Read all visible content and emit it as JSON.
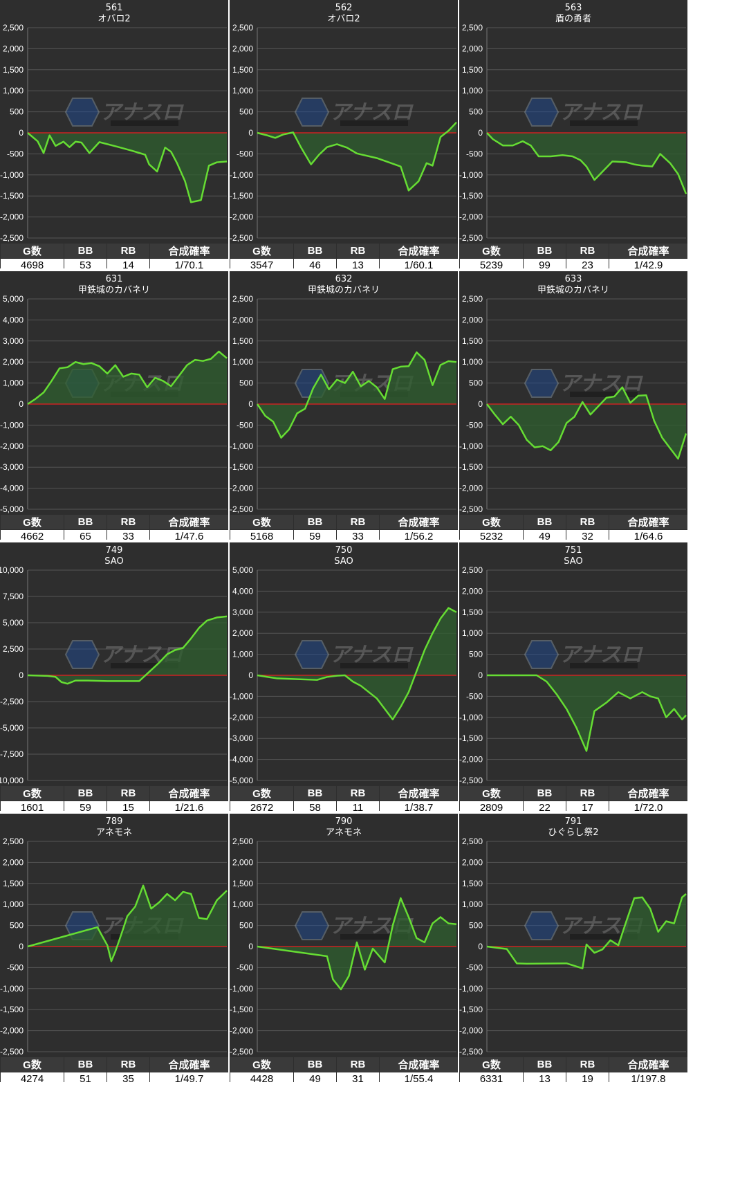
{
  "stat_headers": [
    "G数",
    "BB",
    "RB",
    "合成確率"
  ],
  "colors": {
    "panel_bg": "#2e2e2e",
    "line": "#66dd33",
    "fill": "#2f5f2f",
    "zero_line": "#cc2222",
    "grid": "#555555"
  },
  "watermark": "アナスロ — Analysis Slot",
  "chart_data": [
    {
      "type": "area",
      "machine": "561",
      "title": "オバロ2",
      "ylim": [
        -2500,
        2500
      ],
      "yticks": [
        "2,500",
        "2,000",
        "1,500",
        "1,000",
        "500",
        "0",
        "-500",
        "-1,000",
        "-1,500",
        "-2,000",
        "-2,500"
      ],
      "x": [
        0,
        0.05,
        0.08,
        0.11,
        0.14,
        0.18,
        0.21,
        0.24,
        0.27,
        0.31,
        0.36,
        0.45,
        0.52,
        0.59,
        0.61,
        0.65,
        0.69,
        0.72,
        0.75,
        0.79,
        0.82,
        0.87,
        0.91,
        0.95,
        1.0
      ],
      "values": [
        0,
        -200,
        -480,
        -60,
        -310,
        -210,
        -340,
        -210,
        -230,
        -480,
        -220,
        -330,
        -420,
        -520,
        -750,
        -920,
        -350,
        -450,
        -720,
        -1150,
        -1650,
        -1600,
        -780,
        -700,
        -680
      ],
      "stats": {
        "g": "4698",
        "bb": "53",
        "rb": "14",
        "prob": "1/70.1"
      }
    },
    {
      "type": "area",
      "machine": "562",
      "title": "オバロ2",
      "ylim": [
        -2500,
        2500
      ],
      "yticks": [
        "2,500",
        "2,000",
        "1,500",
        "1,000",
        "500",
        "0",
        "-500",
        "-1,000",
        "-1,500",
        "-2,000",
        "-2,500"
      ],
      "x": [
        0,
        0.05,
        0.09,
        0.13,
        0.18,
        0.22,
        0.27,
        0.31,
        0.35,
        0.4,
        0.45,
        0.5,
        0.6,
        0.72,
        0.76,
        0.81,
        0.85,
        0.88,
        0.92,
        0.96,
        1.0
      ],
      "values": [
        0,
        -60,
        -120,
        -40,
        10,
        -350,
        -750,
        -520,
        -340,
        -270,
        -350,
        -490,
        -600,
        -800,
        -1370,
        -1150,
        -720,
        -780,
        -100,
        50,
        250
      ],
      "stats": {
        "g": "3547",
        "bb": "46",
        "rb": "13",
        "prob": "1/60.1"
      }
    },
    {
      "type": "area",
      "machine": "563",
      "title": "盾の勇者",
      "ylim": [
        -2500,
        2500
      ],
      "yticks": [
        "2,500",
        "2,000",
        "1,500",
        "1,000",
        "500",
        "0",
        "-500",
        "-1,000",
        "-1,500",
        "-2,000",
        "-2,500"
      ],
      "x": [
        0,
        0.03,
        0.08,
        0.13,
        0.18,
        0.22,
        0.26,
        0.32,
        0.38,
        0.43,
        0.47,
        0.5,
        0.54,
        0.63,
        0.7,
        0.74,
        0.78,
        0.83,
        0.87,
        0.92,
        0.96,
        1.0
      ],
      "values": [
        0,
        -150,
        -300,
        -300,
        -200,
        -300,
        -560,
        -560,
        -530,
        -560,
        -650,
        -800,
        -1120,
        -680,
        -700,
        -750,
        -780,
        -800,
        -500,
        -720,
        -980,
        -1450
      ],
      "stats": {
        "g": "5239",
        "bb": "99",
        "rb": "23",
        "prob": "1/42.9"
      }
    },
    {
      "type": "area",
      "machine": "631",
      "title": "甲鉄城のカバネリ",
      "ylim": [
        -5000,
        5000
      ],
      "yticks": [
        "5,000",
        "4,000",
        "3,000",
        "2,000",
        "1,000",
        "0",
        "-1,000",
        "-2,000",
        "-3,000",
        "-4,000",
        "-5,000"
      ],
      "x": [
        0,
        0.04,
        0.08,
        0.12,
        0.16,
        0.2,
        0.24,
        0.28,
        0.32,
        0.36,
        0.4,
        0.44,
        0.48,
        0.52,
        0.56,
        0.6,
        0.64,
        0.68,
        0.72,
        0.76,
        0.8,
        0.84,
        0.88,
        0.92,
        0.96,
        1.0
      ],
      "values": [
        0,
        250,
        550,
        1100,
        1700,
        1750,
        2000,
        1900,
        1950,
        1800,
        1450,
        1850,
        1300,
        1450,
        1400,
        800,
        1250,
        1100,
        850,
        1350,
        1850,
        2100,
        2050,
        2150,
        2500,
        2180
      ],
      "stats": {
        "g": "4662",
        "bb": "65",
        "rb": "33",
        "prob": "1/47.6"
      }
    },
    {
      "type": "area",
      "machine": "632",
      "title": "甲鉄城のカバネリ",
      "ylim": [
        -2500,
        2500
      ],
      "yticks": [
        "2,500",
        "2,000",
        "1,500",
        "1,000",
        "500",
        "0",
        "-500",
        "-1,000",
        "-1,500",
        "-2,000",
        "-2,500"
      ],
      "x": [
        0,
        0.04,
        0.08,
        0.12,
        0.16,
        0.2,
        0.24,
        0.28,
        0.32,
        0.36,
        0.4,
        0.44,
        0.48,
        0.52,
        0.56,
        0.6,
        0.64,
        0.68,
        0.72,
        0.76,
        0.8,
        0.84,
        0.88,
        0.92,
        0.96,
        1.0
      ],
      "values": [
        0,
        -280,
        -420,
        -800,
        -600,
        -220,
        -110,
        370,
        700,
        350,
        580,
        500,
        770,
        420,
        550,
        400,
        120,
        830,
        890,
        900,
        1230,
        1050,
        450,
        930,
        1020,
        1000
      ],
      "stats": {
        "g": "5168",
        "bb": "59",
        "rb": "33",
        "prob": "1/56.2"
      }
    },
    {
      "type": "area",
      "machine": "633",
      "title": "甲鉄城のカバネリ",
      "ylim": [
        -2500,
        2500
      ],
      "yticks": [
        "2,500",
        "2,000",
        "1,500",
        "1,000",
        "500",
        "0",
        "-500",
        "-1,000",
        "-1,500",
        "-2,000",
        "-2,500"
      ],
      "x": [
        0,
        0.04,
        0.08,
        0.12,
        0.16,
        0.2,
        0.24,
        0.28,
        0.32,
        0.36,
        0.4,
        0.44,
        0.48,
        0.52,
        0.56,
        0.6,
        0.64,
        0.68,
        0.72,
        0.76,
        0.8,
        0.84,
        0.88,
        0.92,
        0.96,
        1.0
      ],
      "values": [
        0,
        -250,
        -480,
        -300,
        -500,
        -850,
        -1030,
        -1000,
        -1100,
        -900,
        -450,
        -300,
        50,
        -250,
        -50,
        150,
        180,
        400,
        30,
        200,
        210,
        -400,
        -800,
        -1050,
        -1300,
        -700
      ],
      "stats": {
        "g": "5232",
        "bb": "49",
        "rb": "32",
        "prob": "1/64.6"
      }
    },
    {
      "type": "area",
      "machine": "749",
      "title": "SAO",
      "ylim": [
        -10000,
        10000
      ],
      "yticks": [
        "10,000",
        "7,500",
        "5,000",
        "2,500",
        "0",
        "-2,500",
        "-5,000",
        "-7,500",
        "-10,000"
      ],
      "x": [
        0,
        0.1,
        0.14,
        0.17,
        0.2,
        0.24,
        0.3,
        0.4,
        0.5,
        0.56,
        0.62,
        0.66,
        0.7,
        0.74,
        0.78,
        0.82,
        0.86,
        0.9,
        0.95,
        1.0
      ],
      "values": [
        0,
        -60,
        -150,
        -650,
        -800,
        -500,
        -500,
        -550,
        -550,
        -550,
        500,
        1200,
        2000,
        2400,
        2600,
        3500,
        4500,
        5200,
        5500,
        5600
      ],
      "stats": {
        "g": "1601",
        "bb": "59",
        "rb": "15",
        "prob": "1/21.6"
      }
    },
    {
      "type": "area",
      "machine": "750",
      "title": "SAO",
      "ylim": [
        -5000,
        5000
      ],
      "yticks": [
        "5,000",
        "4,000",
        "3,000",
        "2,000",
        "1,000",
        "0",
        "-1,000",
        "-2,000",
        "-3,000",
        "-4,000",
        "-5,000"
      ],
      "x": [
        0,
        0.1,
        0.3,
        0.35,
        0.4,
        0.44,
        0.48,
        0.52,
        0.56,
        0.6,
        0.64,
        0.68,
        0.72,
        0.76,
        0.8,
        0.84,
        0.88,
        0.92,
        0.96,
        1.0
      ],
      "values": [
        0,
        -150,
        -220,
        -80,
        -20,
        0,
        -300,
        -500,
        -800,
        -1100,
        -1600,
        -2100,
        -1500,
        -800,
        200,
        1200,
        2000,
        2700,
        3200,
        3000
      ],
      "stats": {
        "g": "2672",
        "bb": "58",
        "rb": "11",
        "prob": "1/38.7"
      }
    },
    {
      "type": "area",
      "machine": "751",
      "title": "SAO",
      "ylim": [
        -2500,
        2500
      ],
      "yticks": [
        "2,500",
        "2,000",
        "1,500",
        "1,000",
        "500",
        "0",
        "-500",
        "-1,000",
        "-1,500",
        "-2,000",
        "-2,500"
      ],
      "x": [
        0,
        0.2,
        0.25,
        0.3,
        0.35,
        0.4,
        0.45,
        0.5,
        0.54,
        0.6,
        0.66,
        0.72,
        0.78,
        0.82,
        0.86,
        0.9,
        0.94,
        0.98,
        1.0
      ],
      "values": [
        0,
        0,
        0,
        -150,
        -450,
        -800,
        -1250,
        -1800,
        -850,
        -650,
        -400,
        -550,
        -400,
        -500,
        -550,
        -1000,
        -800,
        -1050,
        -950
      ],
      "stats": {
        "g": "2809",
        "bb": "22",
        "rb": "17",
        "prob": "1/72.0"
      }
    },
    {
      "type": "area",
      "machine": "789",
      "title": "アネモネ",
      "ylim": [
        -2500,
        2500
      ],
      "yticks": [
        "2,500",
        "2,000",
        "1,500",
        "1,000",
        "500",
        "0",
        "-500",
        "-1,000",
        "-1,500",
        "-2,000",
        "-2,500"
      ],
      "x": [
        0,
        0.35,
        0.38,
        0.4,
        0.42,
        0.44,
        0.46,
        0.48,
        0.5,
        0.54,
        0.58,
        0.62,
        0.66,
        0.7,
        0.74,
        0.78,
        0.82,
        0.86,
        0.9,
        0.95,
        1.0
      ],
      "values": [
        0,
        460,
        200,
        30,
        -350,
        -120,
        150,
        430,
        720,
        950,
        1450,
        900,
        1050,
        1250,
        1100,
        1300,
        1250,
        680,
        650,
        1100,
        1330
      ],
      "stats": {
        "g": "4274",
        "bb": "51",
        "rb": "35",
        "prob": "1/49.7"
      }
    },
    {
      "type": "area",
      "machine": "790",
      "title": "アネモネ",
      "ylim": [
        -2500,
        2500
      ],
      "yticks": [
        "2,500",
        "2,000",
        "1,500",
        "1,000",
        "500",
        "0",
        "-500",
        "-1,000",
        "-1,500",
        "-2,000",
        "-2,500"
      ],
      "x": [
        0,
        0.35,
        0.38,
        0.42,
        0.46,
        0.5,
        0.54,
        0.58,
        0.64,
        0.68,
        0.72,
        0.76,
        0.8,
        0.84,
        0.88,
        0.92,
        0.96,
        1.0
      ],
      "values": [
        0,
        -230,
        -780,
        -1020,
        -700,
        100,
        -550,
        -50,
        -380,
        500,
        1150,
        700,
        200,
        100,
        550,
        700,
        550,
        530
      ],
      "stats": {
        "g": "4428",
        "bb": "49",
        "rb": "31",
        "prob": "1/55.4"
      }
    },
    {
      "type": "area",
      "machine": "791",
      "title": "ひぐらし祭2",
      "ylim": [
        -2500,
        2500
      ],
      "yticks": [
        "2,500",
        "2,000",
        "1,500",
        "1,000",
        "500",
        "0",
        "-500",
        "-1,000",
        "-1,500",
        "-2,000",
        "-2,500"
      ],
      "x": [
        0,
        0.1,
        0.15,
        0.2,
        0.4,
        0.48,
        0.5,
        0.54,
        0.58,
        0.62,
        0.66,
        0.7,
        0.74,
        0.78,
        0.82,
        0.86,
        0.9,
        0.94,
        0.98,
        1.0
      ],
      "values": [
        0,
        -60,
        -400,
        -410,
        -400,
        -520,
        50,
        -150,
        -70,
        150,
        30,
        600,
        1150,
        1170,
        900,
        350,
        600,
        550,
        1170,
        1250
      ],
      "stats": {
        "g": "6331",
        "bb": "13",
        "rb": "19",
        "prob": "1/197.8"
      }
    }
  ]
}
